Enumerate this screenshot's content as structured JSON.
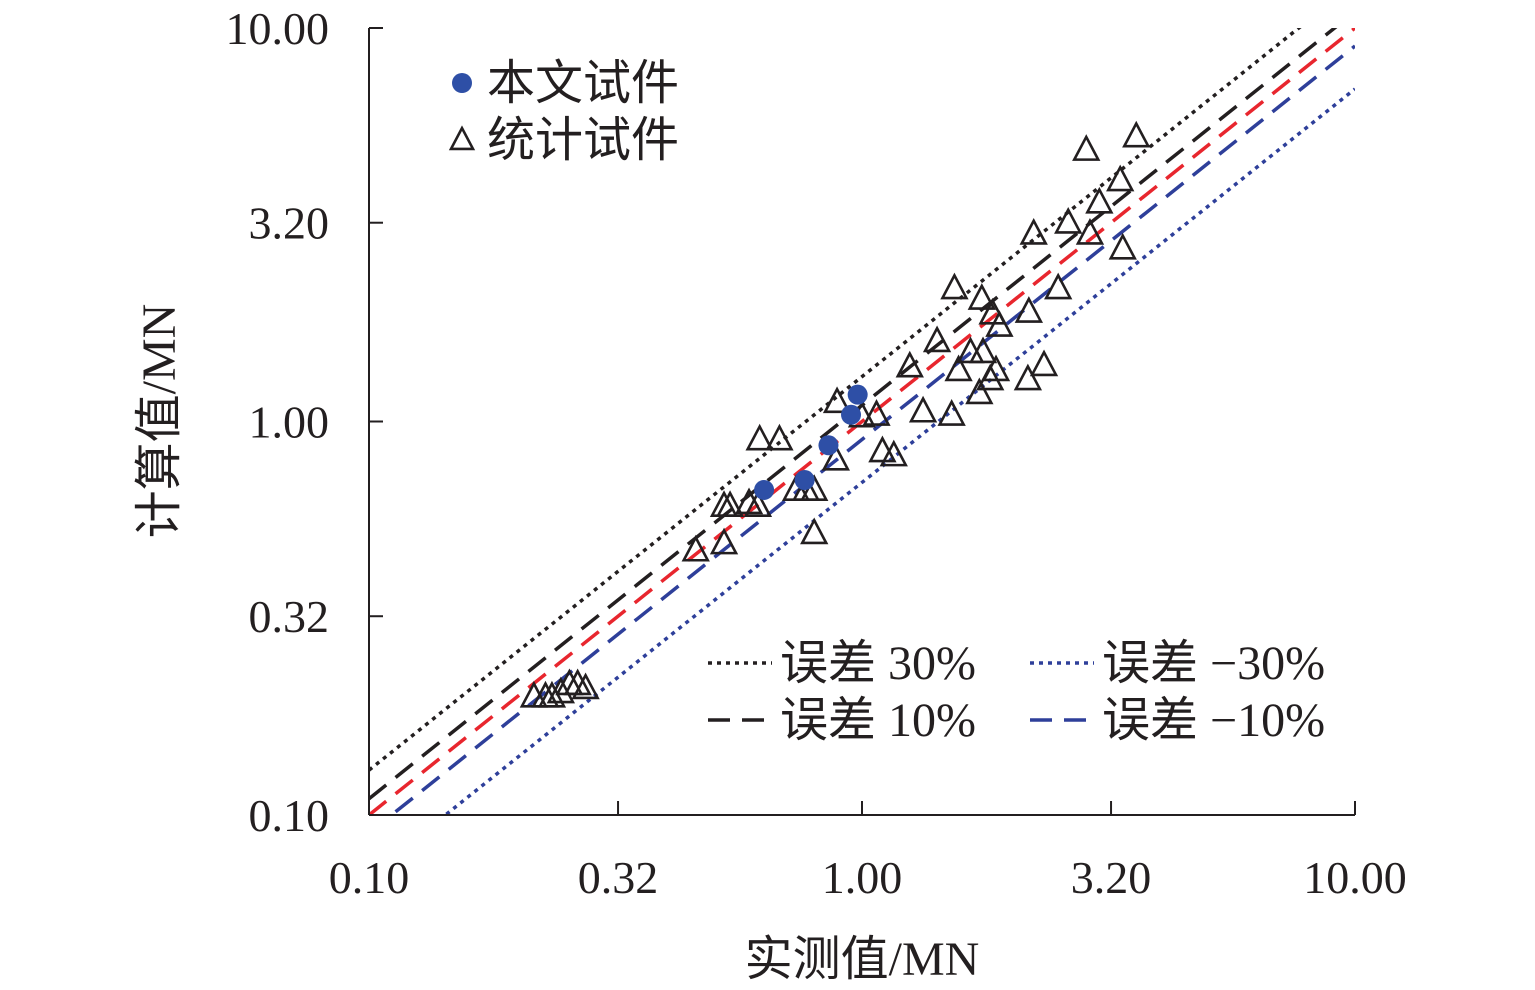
{
  "chart_data": {
    "type": "scatter",
    "xlabel": "实测值/MN",
    "ylabel": "计算值/MN",
    "x_scale": "log",
    "y_scale": "log",
    "xlim": [
      0.1,
      10.0
    ],
    "ylim": [
      0.1,
      10.0
    ],
    "x_ticks": [
      "0.10",
      "0.32",
      "1.00",
      "3.20",
      "10.00"
    ],
    "y_ticks": [
      "0.10",
      "0.32",
      "1.00",
      "3.20",
      "10.00"
    ],
    "grid": false,
    "series": [
      {
        "name": "本文试件",
        "marker": "circle",
        "color": "#2e4fa6",
        "points": [
          [
            0.633,
            0.67
          ],
          [
            0.765,
            0.71
          ],
          [
            0.855,
            0.87
          ],
          [
            0.95,
            1.04
          ],
          [
            0.98,
            1.17
          ]
        ]
      },
      {
        "name": "统计试件",
        "marker": "triangle-open",
        "color": "#231f20",
        "points": [
          [
            0.216,
            0.2
          ],
          [
            0.228,
            0.2
          ],
          [
            0.235,
            0.2
          ],
          [
            0.245,
            0.205
          ],
          [
            0.255,
            0.215
          ],
          [
            0.265,
            0.215
          ],
          [
            0.275,
            0.21
          ],
          [
            0.46,
            0.47
          ],
          [
            0.525,
            0.49
          ],
          [
            0.525,
            0.61
          ],
          [
            0.54,
            0.61
          ],
          [
            0.59,
            0.62
          ],
          [
            0.615,
            0.61
          ],
          [
            0.62,
            0.9
          ],
          [
            0.68,
            0.9
          ],
          [
            0.735,
            0.67
          ],
          [
            0.77,
            0.67
          ],
          [
            0.8,
            0.67
          ],
          [
            0.8,
            0.52
          ],
          [
            0.885,
            0.8
          ],
          [
            0.89,
            1.12
          ],
          [
            1.0,
            1.03
          ],
          [
            1.07,
            1.04
          ],
          [
            1.1,
            0.84
          ],
          [
            1.16,
            0.82
          ],
          [
            1.25,
            1.38
          ],
          [
            1.33,
            1.06
          ],
          [
            1.42,
            1.6
          ],
          [
            1.52,
            1.04
          ],
          [
            1.54,
            2.18
          ],
          [
            1.57,
            1.35
          ],
          [
            1.66,
            1.5
          ],
          [
            1.73,
            1.18
          ],
          [
            1.75,
            2.05
          ],
          [
            1.76,
            1.5
          ],
          [
            1.82,
            1.28
          ],
          [
            1.84,
            1.88
          ],
          [
            1.87,
            1.35
          ],
          [
            1.9,
            1.75
          ],
          [
            2.17,
            1.28
          ],
          [
            2.18,
            1.9
          ],
          [
            2.23,
            3.0
          ],
          [
            2.34,
            1.39
          ],
          [
            2.5,
            2.18
          ],
          [
            2.62,
            3.2
          ],
          [
            2.85,
            4.9
          ],
          [
            2.9,
            3.0
          ],
          [
            3.03,
            3.6
          ],
          [
            3.34,
            4.1
          ],
          [
            3.38,
            2.75
          ],
          [
            3.6,
            5.3
          ]
        ]
      }
    ],
    "reference_lines": [
      {
        "name": "误差 30%",
        "factor": 1.3,
        "color": "#231f20",
        "style": "dotted"
      },
      {
        "name": "误差 10%",
        "factor": 1.1,
        "color": "#231f20",
        "style": "dashed"
      },
      {
        "name": "",
        "factor": 1.0,
        "color": "#e8262e",
        "style": "dashed"
      },
      {
        "name": "误差 −30%",
        "factor": 0.7,
        "color": "#2e3f9a",
        "style": "dotted"
      },
      {
        "name": "误差 −10%",
        "factor": 0.9,
        "color": "#2e3f9a",
        "style": "dashed"
      }
    ],
    "legend": {
      "markers_placement": "top-left",
      "lines_placement": "bottom-right",
      "markers": [
        "本文试件",
        "统计试件"
      ],
      "lines": [
        "误差 30%",
        "误差 −30%",
        "误差 10%",
        "误差 −10%"
      ]
    }
  }
}
